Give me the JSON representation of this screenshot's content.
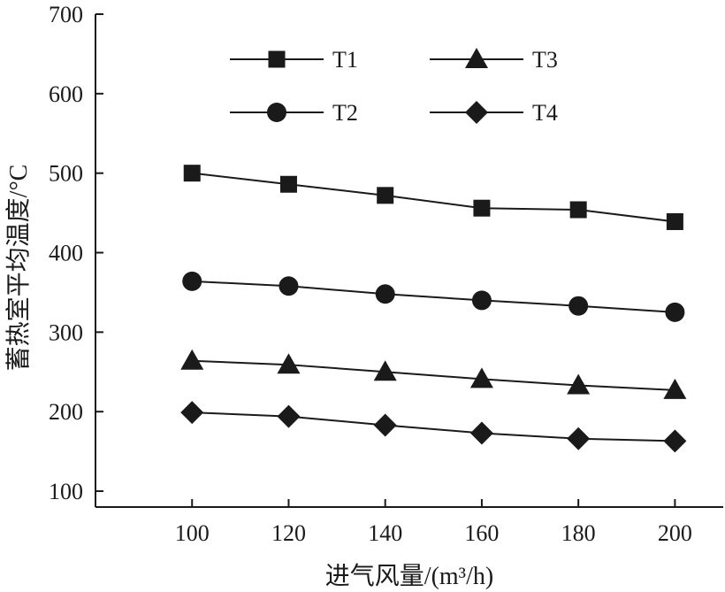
{
  "chart_data": {
    "type": "line",
    "xlabel": "进气风量/(m³/h)",
    "ylabel": "蓄热室平均温度/°C",
    "xlim": [
      80,
      210
    ],
    "ylim": [
      80,
      700
    ],
    "xticks": [
      100,
      120,
      140,
      160,
      180,
      200
    ],
    "yticks": [
      100,
      200,
      300,
      400,
      500,
      600,
      700
    ],
    "grid": false,
    "legend_placement": "top",
    "x": [
      100,
      120,
      140,
      160,
      180,
      200
    ],
    "series": [
      {
        "name": "T1",
        "marker": "square",
        "values": [
          500,
          486,
          472,
          456,
          454,
          439
        ]
      },
      {
        "name": "T2",
        "marker": "circle",
        "values": [
          364,
          358,
          348,
          340,
          333,
          325
        ]
      },
      {
        "name": "T3",
        "marker": "triangle",
        "values": [
          264,
          259,
          250,
          241,
          233,
          227
        ]
      },
      {
        "name": "T4",
        "marker": "diamond",
        "values": [
          199,
          194,
          183,
          173,
          166,
          163
        ]
      }
    ],
    "colors": {
      "line": "#1a1a1a",
      "background": "#ffffff"
    }
  }
}
